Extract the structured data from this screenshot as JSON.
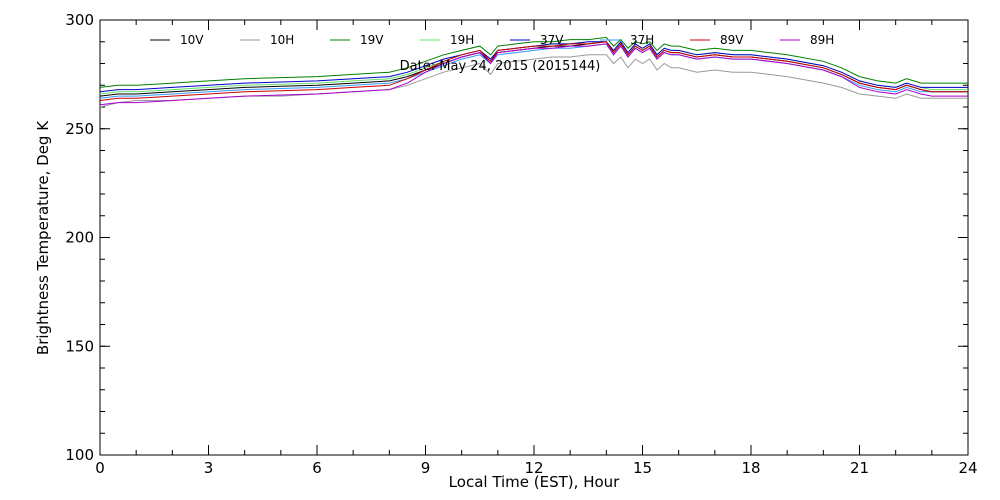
{
  "chart_data": {
    "type": "line",
    "xlabel": "Local Time (EST), Hour",
    "ylabel": "Brightness Temperature, Deg K",
    "annotation": "Date: May 24, 2015 (2015144)",
    "xlim": [
      0,
      24
    ],
    "ylim": [
      100,
      300
    ],
    "xticks": [
      0,
      3,
      6,
      9,
      12,
      15,
      18,
      21,
      24
    ],
    "yticks": [
      100,
      150,
      200,
      250,
      300
    ],
    "x_minor_step": 1,
    "y_minor_step": 10,
    "grid": false,
    "legend_position": "top",
    "x": [
      0,
      0.5,
      1,
      1.5,
      2,
      3,
      4,
      5,
      6,
      7,
      8,
      8.5,
      9,
      9.5,
      10,
      10.5,
      10.8,
      11,
      11.5,
      12,
      12.5,
      13,
      13.5,
      14,
      14.2,
      14.4,
      14.6,
      14.8,
      15,
      15.2,
      15.4,
      15.6,
      15.8,
      16,
      16.5,
      17,
      17.5,
      18,
      19,
      20,
      20.5,
      21,
      21.5,
      22,
      22.3,
      22.5,
      22.7,
      23,
      23.5,
      24
    ],
    "series": [
      {
        "name": "10V",
        "color": "#000000",
        "values": [
          265,
          266,
          266,
          266.5,
          267,
          268,
          269,
          269.5,
          270,
          271,
          272,
          274,
          277,
          280,
          283,
          285,
          281,
          285,
          286,
          287,
          288,
          288,
          289,
          290,
          285,
          289,
          284,
          288,
          286,
          288,
          283,
          286,
          285,
          285,
          283,
          284,
          283,
          283,
          281,
          278,
          275,
          271,
          269,
          268,
          270,
          269,
          268,
          267,
          267,
          267
        ]
      },
      {
        "name": "10H",
        "color": "#9a9a9a",
        "values": [
          260,
          262,
          263,
          263,
          263,
          264,
          265,
          265,
          266,
          267,
          268,
          270,
          273,
          276,
          278,
          280,
          275,
          280,
          281,
          282,
          283,
          283,
          284,
          284,
          280,
          283,
          278,
          282,
          280,
          282,
          277,
          280,
          278,
          278,
          276,
          277,
          276,
          276,
          274,
          271,
          269,
          266,
          265,
          264,
          266,
          265,
          264,
          264,
          264,
          264
        ]
      },
      {
        "name": "19V",
        "color": "#008000",
        "values": [
          269,
          270,
          270,
          270.5,
          271,
          272,
          273,
          273.5,
          274,
          275,
          276,
          278,
          281,
          284,
          286,
          288,
          284,
          288,
          289,
          290,
          290,
          291,
          291,
          292,
          288,
          291,
          287,
          290,
          289,
          290,
          286,
          289,
          288,
          288,
          286,
          287,
          286,
          286,
          284,
          281,
          278,
          274,
          272,
          271,
          273,
          272,
          271,
          271,
          271,
          271
        ]
      },
      {
        "name": "19H",
        "color": "#66dd66",
        "values": [
          266,
          267,
          267,
          267.5,
          268,
          269,
          270,
          270.5,
          271,
          272,
          273,
          275,
          278,
          281,
          284,
          286,
          282,
          286,
          287,
          288,
          289,
          289,
          290,
          290,
          286,
          290,
          285,
          289,
          287,
          289,
          284,
          287,
          286,
          286,
          284,
          285,
          284,
          284,
          282,
          279,
          276,
          272,
          270,
          269,
          271,
          270,
          269,
          268,
          268,
          268
        ]
      },
      {
        "name": "37V",
        "color": "#0000cc",
        "values": [
          267,
          268,
          268,
          268.5,
          269,
          270,
          271,
          271.5,
          272,
          273,
          274,
          276,
          279,
          282,
          284,
          286,
          282,
          286,
          287,
          288,
          289,
          289,
          290,
          290,
          286,
          290,
          285,
          289,
          287,
          289,
          284,
          287,
          286,
          286,
          284,
          285,
          284,
          284,
          282,
          279,
          276,
          272,
          270,
          269,
          271,
          270,
          269,
          269,
          269,
          269
        ]
      },
      {
        "name": "37H",
        "color": "#3399ff",
        "values": [
          264,
          265,
          265,
          265.5,
          266,
          267,
          268,
          268.5,
          269,
          270,
          271,
          273,
          276,
          279,
          282,
          284,
          280,
          284,
          285,
          286,
          287,
          287,
          288,
          289,
          284,
          288,
          283,
          287,
          285,
          287,
          282,
          285,
          284,
          284,
          282,
          283,
          282,
          282,
          280,
          277,
          274,
          270,
          268,
          267,
          269,
          268,
          267,
          267,
          267,
          267
        ]
      },
      {
        "name": "89V",
        "color": "#cc0000",
        "values": [
          263,
          264,
          264,
          264.5,
          265,
          266,
          267,
          267.5,
          268,
          269,
          270,
          273,
          277,
          281,
          284,
          286,
          281,
          286,
          287,
          288,
          288,
          289,
          289,
          290,
          285,
          289,
          284,
          288,
          286,
          288,
          283,
          286,
          285,
          285,
          283,
          284,
          283,
          283,
          281,
          278,
          275,
          271,
          269,
          268,
          270,
          269,
          268,
          267,
          267,
          267
        ]
      },
      {
        "name": "89H",
        "color": "#aa00cc",
        "values": [
          261,
          262,
          262,
          262.5,
          263,
          264,
          265,
          265.5,
          266,
          267,
          268,
          271,
          276,
          280,
          283,
          285,
          280,
          285,
          286,
          287,
          287,
          288,
          288,
          289,
          284,
          288,
          283,
          287,
          285,
          287,
          282,
          285,
          284,
          284,
          282,
          283,
          282,
          282,
          280,
          277,
          274,
          269,
          267,
          266,
          268,
          267,
          266,
          265,
          265,
          265
        ]
      }
    ]
  }
}
